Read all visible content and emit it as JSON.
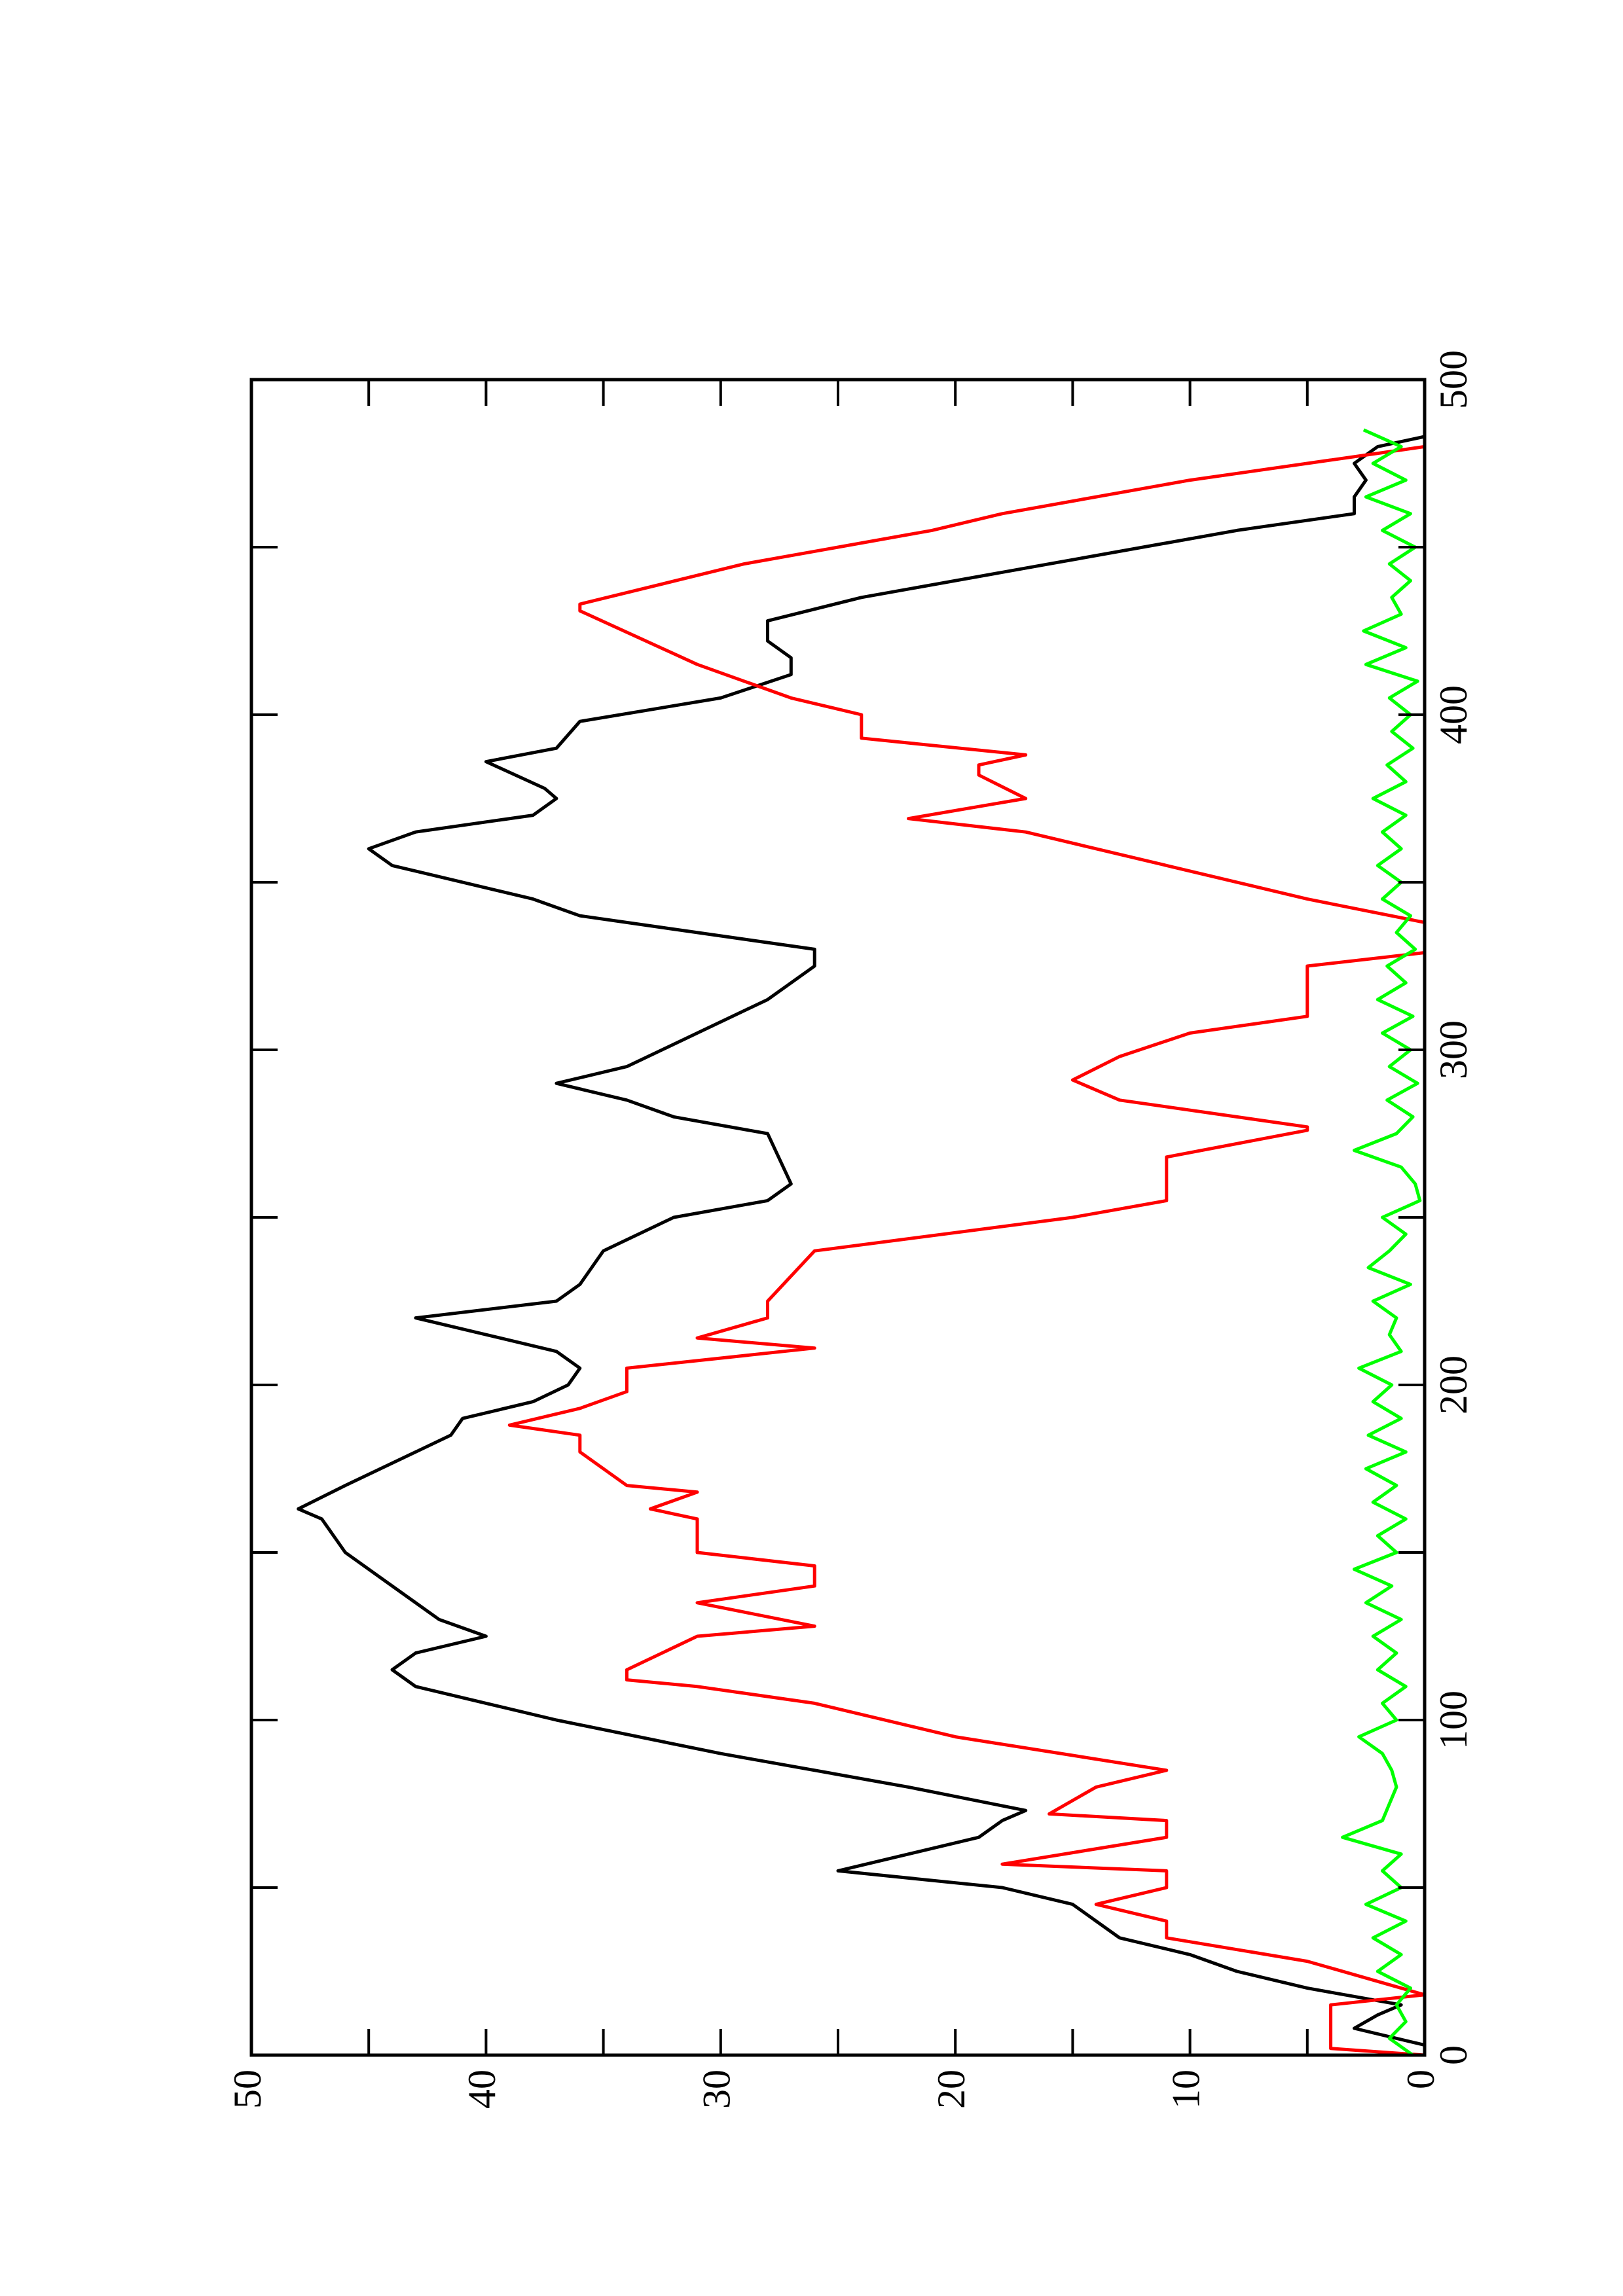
{
  "chart_data": {
    "type": "line",
    "xlim": [
      0,
      500
    ],
    "xticks": [
      0,
      100,
      200,
      300,
      400,
      500
    ],
    "xminorticks": [
      50,
      150,
      250,
      350,
      450
    ],
    "ylim": [
      0,
      50
    ],
    "yticks": [
      0,
      10,
      20,
      30,
      40,
      50
    ],
    "yminorticks": [
      5,
      15,
      25,
      35,
      45
    ],
    "rotation": -90,
    "series": [
      {
        "color": "#000000",
        "x": [
          3,
          8,
          12,
          15,
          20,
          25,
          30,
          35,
          40,
          45,
          50,
          55,
          60,
          65,
          70,
          73,
          80,
          90,
          100,
          105,
          110,
          115,
          120,
          125,
          130,
          135,
          140,
          150,
          160,
          163,
          170,
          180,
          185,
          190,
          195,
          200,
          205,
          210,
          220,
          225,
          230,
          240,
          250,
          255,
          260,
          275,
          280,
          285,
          290,
          295,
          305,
          315,
          325,
          330,
          340,
          345,
          355,
          360,
          365,
          370,
          375,
          378,
          386,
          390,
          398,
          405,
          412,
          417,
          422,
          428,
          435,
          445,
          455,
          460,
          465,
          470,
          475,
          480,
          483
        ],
        "values": [
          0,
          3,
          2,
          1,
          5,
          8,
          10,
          13,
          14,
          15,
          18,
          25,
          22,
          19,
          18,
          17,
          22,
          30,
          37,
          40,
          43,
          44,
          43,
          40,
          42,
          43,
          44,
          46,
          47,
          48,
          46,
          43,
          41.5,
          41,
          38,
          36.5,
          36,
          37,
          43,
          37,
          36,
          35,
          32,
          28,
          27,
          28,
          32,
          34,
          37,
          34,
          31,
          28,
          26,
          26,
          36,
          38,
          44,
          45,
          43,
          38,
          37,
          37.5,
          40,
          37,
          36,
          30,
          27,
          27,
          28,
          28,
          24,
          16,
          8,
          3,
          3,
          2.5,
          3,
          2,
          0
        ]
      },
      {
        "color": "#ff0000",
        "x": [
          0,
          2,
          15,
          18,
          28,
          35,
          40,
          45,
          50,
          55,
          57,
          65,
          70,
          72,
          80,
          85,
          95,
          105,
          110,
          112,
          115,
          125,
          128,
          135,
          140,
          146,
          150,
          160,
          163,
          168,
          170,
          180,
          185,
          188,
          193,
          198,
          205,
          211,
          214,
          220,
          225,
          240,
          250,
          255,
          268,
          276,
          277,
          285,
          291,
          298,
          305,
          310,
          325,
          329,
          338,
          345,
          355,
          365,
          369,
          375,
          382,
          385,
          388,
          393,
          400,
          405,
          410,
          415,
          431,
          433,
          445,
          455,
          460,
          470,
          475,
          480
        ],
        "values": [
          0,
          4,
          4,
          0,
          5,
          11,
          11,
          14,
          11,
          11,
          18,
          11,
          11,
          16,
          14,
          11,
          20,
          26,
          31,
          34,
          34,
          31,
          26,
          31,
          26,
          26,
          31,
          31,
          33,
          31,
          34,
          36,
          36,
          39,
          36,
          34,
          34,
          26,
          31,
          28,
          28,
          26,
          15,
          11,
          11,
          5,
          5,
          13,
          15,
          13,
          10,
          5,
          5,
          0,
          0,
          5,
          11,
          17,
          22,
          17,
          19,
          19,
          17,
          24,
          24,
          27,
          29,
          31,
          36,
          36,
          29,
          21,
          18,
          10,
          5,
          0
        ]
      },
      {
        "color": "#00ff00",
        "x": [
          0,
          5,
          10,
          15,
          20,
          25,
          30,
          35,
          40,
          45,
          50,
          55,
          60,
          65,
          70,
          75,
          80,
          85,
          90,
          95,
          100,
          105,
          110,
          115,
          120,
          125,
          130,
          135,
          140,
          145,
          150,
          155,
          160,
          165,
          170,
          175,
          180,
          185,
          190,
          195,
          200,
          205,
          210,
          215,
          220,
          225,
          230,
          235,
          240,
          245,
          250,
          255,
          260,
          265,
          270,
          275,
          280,
          285,
          290,
          295,
          300,
          305,
          310,
          315,
          320,
          325,
          330,
          335,
          340,
          345,
          350,
          355,
          360,
          365,
          370,
          375,
          380,
          385,
          390,
          395,
          400,
          405,
          410,
          415,
          420,
          425,
          430,
          435,
          440,
          445,
          450,
          455,
          460,
          465,
          470,
          475,
          480,
          485
        ],
        "values": [
          0.5,
          1.5,
          0.8,
          1.2,
          0.6,
          2,
          1,
          2.2,
          0.8,
          2.5,
          1,
          1.8,
          1,
          3.5,
          1.8,
          1.5,
          1.2,
          1.4,
          1.8,
          2.8,
          1.2,
          1.8,
          0.8,
          2,
          1.2,
          2.2,
          1,
          2.5,
          1.4,
          3,
          1.2,
          2,
          0.8,
          2.2,
          1.2,
          2.5,
          0.8,
          2.4,
          1,
          2.2,
          1.4,
          2.8,
          1,
          1.5,
          1.2,
          2.2,
          0.6,
          2.4,
          1.5,
          0.8,
          1.8,
          0.2,
          0.4,
          1,
          3,
          1.2,
          0.5,
          1.6,
          0.3,
          1.5,
          0.6,
          1.8,
          0.5,
          2,
          0.8,
          1.6,
          0.4,
          1.2,
          0.6,
          1.8,
          1,
          2,
          1,
          1.8,
          0.8,
          2.2,
          0.8,
          1.6,
          0.5,
          1.4,
          0.6,
          1.5,
          0.3,
          2.5,
          0.8,
          2.6,
          1,
          1.4,
          0.6,
          1.5,
          0.4,
          1.8,
          0.6,
          2.5,
          0.8,
          2.2,
          1,
          2.6
        ]
      }
    ]
  }
}
